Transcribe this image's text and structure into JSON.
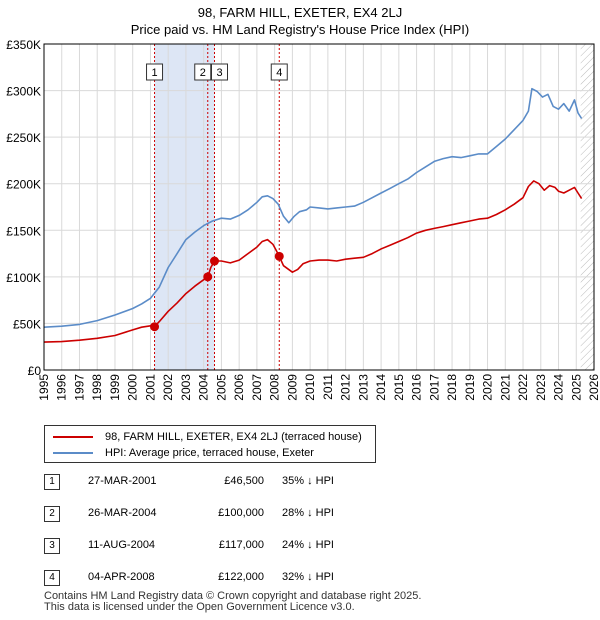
{
  "title_line1": "98, FARM HILL, EXETER, EX4 2LJ",
  "title_line2": "Price paid vs. HM Land Registry's House Price Index (HPI)",
  "colors": {
    "property": "#cc0000",
    "hpi": "#5b8cc8",
    "band": "#dde6f5",
    "grid": "#d9d9d9",
    "marker_line": "#cc0000"
  },
  "legend": {
    "property_label": "98, FARM HILL, EXETER, EX4 2LJ (terraced house)",
    "hpi_label": "HPI: Average price, terraced house, Exeter"
  },
  "sales": [
    {
      "num": "1",
      "date": "27-MAR-2001",
      "price": "£46,500",
      "diff": "35% ↓ HPI"
    },
    {
      "num": "2",
      "date": "26-MAR-2004",
      "price": "£100,000",
      "diff": "28% ↓ HPI"
    },
    {
      "num": "3",
      "date": "11-AUG-2004",
      "price": "£117,000",
      "diff": "24% ↓ HPI"
    },
    {
      "num": "4",
      "date": "04-APR-2008",
      "price": "£122,000",
      "diff": "32% ↓ HPI"
    }
  ],
  "footer_line1": "Contains HM Land Registry data © Crown copyright and database right 2025.",
  "footer_line2": "This data is licensed under the Open Government Licence v3.0.",
  "chart_data": {
    "type": "line",
    "title": "98, FARM HILL, EXETER, EX4 2LJ — Price paid vs. HM Land Registry's House Price Index (HPI)",
    "xlabel": "",
    "ylabel": "",
    "xlim": [
      1995,
      2026
    ],
    "ylim": [
      0,
      350000
    ],
    "x_ticks": [
      1995,
      1996,
      1997,
      1998,
      1999,
      2000,
      2001,
      2002,
      2003,
      2004,
      2005,
      2006,
      2007,
      2008,
      2009,
      2010,
      2011,
      2012,
      2013,
      2014,
      2015,
      2016,
      2017,
      2018,
      2019,
      2020,
      2021,
      2022,
      2023,
      2024,
      2025,
      2026
    ],
    "y_ticks": [
      0,
      50000,
      100000,
      150000,
      200000,
      250000,
      300000,
      350000
    ],
    "y_tick_labels": [
      "£0",
      "£50K",
      "£100K",
      "£150K",
      "£200K",
      "£250K",
      "£300K",
      "£350K"
    ],
    "grid": true,
    "shaded_band": [
      2001.23,
      2004.61
    ],
    "data_end_hatch_from": 2025.25,
    "series": [
      {
        "name": "98, FARM HILL, EXETER, EX4 2LJ (terraced house)",
        "color": "#cc0000",
        "x": [
          1995,
          1996,
          1997,
          1998,
          1999,
          2000,
          2000.5,
          2001,
          2001.23,
          2001.5,
          2002,
          2002.5,
          2003,
          2003.5,
          2004,
          2004.23,
          2004.4,
          2004.61,
          2005,
          2005.5,
          2006,
          2006.5,
          2007,
          2007.3,
          2007.6,
          2007.9,
          2008.1,
          2008.26,
          2008.5,
          2009,
          2009.3,
          2009.6,
          2010,
          2010.5,
          2011,
          2011.5,
          2012,
          2012.5,
          2013,
          2013.5,
          2014,
          2014.5,
          2015,
          2015.5,
          2016,
          2016.5,
          2017,
          2017.5,
          2018,
          2018.5,
          2019,
          2019.5,
          2020,
          2020.5,
          2021,
          2021.5,
          2022,
          2022.3,
          2022.6,
          2022.9,
          2023.2,
          2023.5,
          2023.8,
          2024,
          2024.3,
          2024.6,
          2024.9,
          2025.1,
          2025.3
        ],
        "values": [
          30000,
          30500,
          32000,
          34000,
          37000,
          43000,
          46000,
          47500,
          46500,
          52000,
          63000,
          72000,
          82000,
          90000,
          97000,
          100000,
          110000,
          117000,
          117000,
          115000,
          118000,
          125000,
          132000,
          138000,
          140000,
          135000,
          128000,
          122000,
          112000,
          105000,
          108000,
          114000,
          117000,
          118000,
          118000,
          117000,
          119000,
          120000,
          121000,
          125000,
          130000,
          134000,
          138000,
          142000,
          147000,
          150000,
          152000,
          154000,
          156000,
          158000,
          160000,
          162000,
          163000,
          167000,
          172000,
          178000,
          185000,
          197000,
          203000,
          200000,
          193000,
          198000,
          196000,
          192000,
          190000,
          193000,
          196000,
          190000,
          184000
        ],
        "markers": [
          {
            "label": "1",
            "x": 2001.23,
            "value": 46500
          },
          {
            "label": "2",
            "x": 2004.23,
            "value": 100000
          },
          {
            "label": "3",
            "x": 2004.61,
            "value": 117000
          },
          {
            "label": "4",
            "x": 2008.26,
            "value": 122000
          }
        ]
      },
      {
        "name": "HPI: Average price, terraced house, Exeter",
        "color": "#5b8cc8",
        "x": [
          1995,
          1996,
          1997,
          1998,
          1999,
          2000,
          2000.5,
          2001,
          2001.5,
          2002,
          2002.5,
          2003,
          2003.5,
          2004,
          2004.5,
          2005,
          2005.5,
          2006,
          2006.5,
          2007,
          2007.3,
          2007.6,
          2007.9,
          2008.2,
          2008.5,
          2008.8,
          2009.1,
          2009.4,
          2009.8,
          2010,
          2010.5,
          2011,
          2011.5,
          2012,
          2012.5,
          2013,
          2013.5,
          2014,
          2014.5,
          2015,
          2015.5,
          2016,
          2016.5,
          2017,
          2017.5,
          2018,
          2018.5,
          2019,
          2019.5,
          2020,
          2020.5,
          2021,
          2021.5,
          2022,
          2022.3,
          2022.5,
          2022.8,
          2023.1,
          2023.4,
          2023.7,
          2024,
          2024.3,
          2024.6,
          2024.9,
          2025.1,
          2025.3
        ],
        "values": [
          46000,
          47000,
          49000,
          53000,
          59000,
          66000,
          71000,
          77000,
          89000,
          110000,
          125000,
          140000,
          148000,
          155000,
          160000,
          163000,
          162000,
          166000,
          172000,
          180000,
          186000,
          187000,
          184000,
          178000,
          165000,
          158000,
          165000,
          170000,
          172000,
          175000,
          174000,
          173000,
          174000,
          175000,
          176000,
          180000,
          185000,
          190000,
          195000,
          200000,
          205000,
          212000,
          218000,
          224000,
          227000,
          229000,
          228000,
          230000,
          232000,
          232000,
          240000,
          248000,
          258000,
          268000,
          278000,
          302000,
          299000,
          293000,
          296000,
          283000,
          280000,
          286000,
          278000,
          290000,
          276000,
          270000
        ]
      }
    ]
  }
}
